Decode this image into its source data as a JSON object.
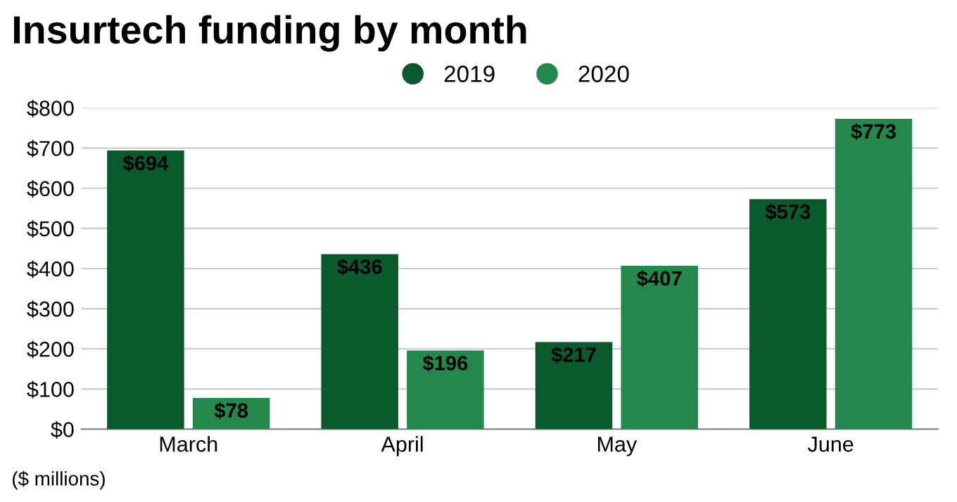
{
  "chart_data": {
    "type": "bar",
    "title": "Insurtech funding by month",
    "categories": [
      "March",
      "April",
      "May",
      "June"
    ],
    "series": [
      {
        "name": "2019",
        "color": "#0b5a2c",
        "values": [
          694,
          436,
          217,
          573
        ],
        "value_labels": [
          "$694",
          "$436",
          "$217",
          "$573"
        ]
      },
      {
        "name": "2020",
        "color": "#24874b",
        "values": [
          78,
          196,
          407,
          773
        ],
        "value_labels": [
          "$78",
          "$196",
          "$407",
          "$773"
        ]
      }
    ],
    "ylim": [
      0,
      800
    ],
    "yticks": [
      {
        "value": 0,
        "label": "$0"
      },
      {
        "value": 100,
        "label": "$100"
      },
      {
        "value": 200,
        "label": "$200"
      },
      {
        "value": 300,
        "label": "$300"
      },
      {
        "value": 400,
        "label": "$400"
      },
      {
        "value": 500,
        "label": "$500"
      },
      {
        "value": 600,
        "label": "$600"
      },
      {
        "value": 700,
        "label": "$700"
      },
      {
        "value": 800,
        "label": "$800"
      }
    ],
    "grid": "y",
    "legend": "top",
    "annotations": [
      "($ millions)"
    ]
  }
}
